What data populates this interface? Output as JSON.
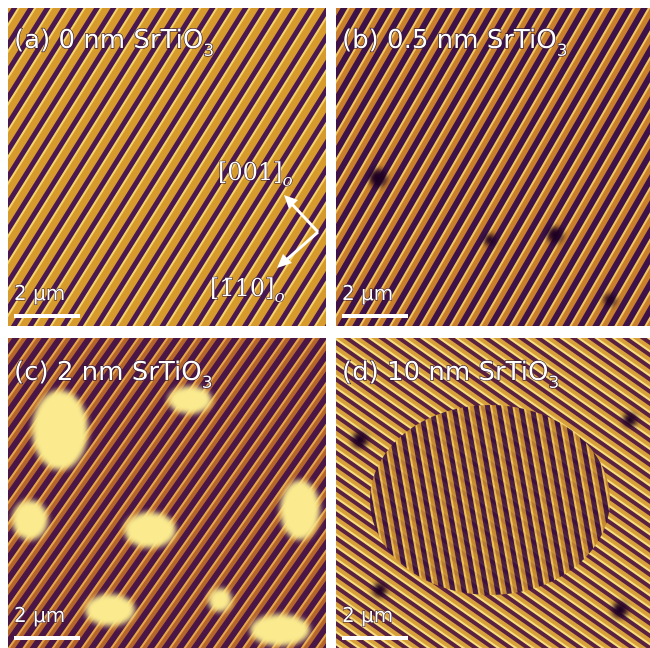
{
  "panels": [
    {
      "label": "(a) 0 nm SrTiO",
      "subscript": "3",
      "scale_bar": "2 μm"
    },
    {
      "label": "(b) 0.5 nm SrTiO",
      "subscript": "3",
      "scale_bar": "2 μm"
    },
    {
      "label": "(c) 2 nm SrTiO",
      "subscript": "3",
      "scale_bar": "2 μm"
    },
    {
      "label": "(d) 10 nm SrTiO",
      "subscript": "3",
      "scale_bar": "2 μm"
    }
  ],
  "directions": [
    {
      "label": "[001]",
      "subscript": "o"
    },
    {
      "label": "[1̄10]",
      "subscript": "o"
    }
  ]
}
